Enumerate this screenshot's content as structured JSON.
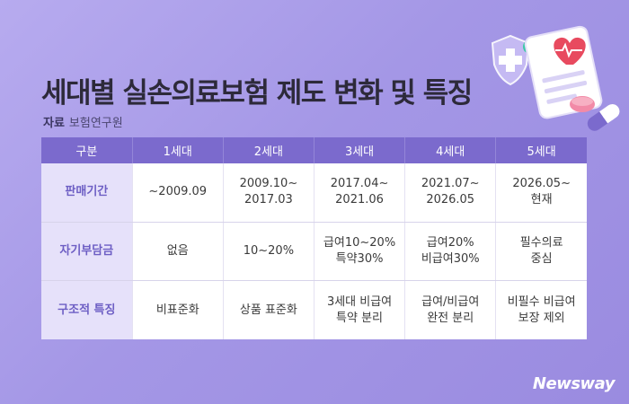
{
  "title": "세대별 실손의료보험 제도 변화 및 특징",
  "source": {
    "label": "자료",
    "value": "보험연구원"
  },
  "table": {
    "headers": [
      "구분",
      "1세대",
      "2세대",
      "3세대",
      "4세대",
      "5세대"
    ],
    "rows": [
      {
        "label": "판매기간",
        "cells": [
          "~2009.09",
          "2009.10~\n2017.03",
          "2017.04~\n2021.06",
          "2021.07~\n2026.05",
          "2026.05~\n현재"
        ]
      },
      {
        "label": "자기부담금",
        "cells": [
          "없음",
          "10~20%",
          "급여10~20%\n특약30%",
          "급여20%\n비급여30%",
          "필수의료\n중심"
        ]
      },
      {
        "label": "구조적 특징",
        "cells": [
          "비표준화",
          "상품 표준화",
          "3세대 비급여\n특약 분리",
          "급여/비급여\n완전 분리",
          "비필수 비급여\n보장 제외"
        ]
      }
    ]
  },
  "logo": "Newsway"
}
